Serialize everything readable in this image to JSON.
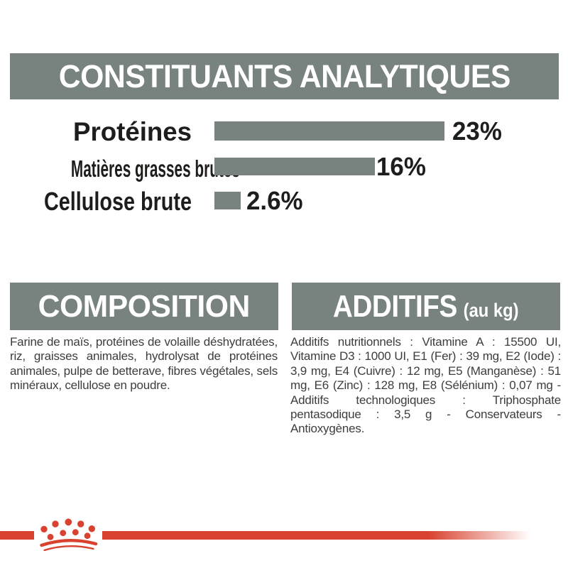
{
  "page": {
    "analytical_header": "CONSTITUANTS ANALYTIQUES",
    "composition": {
      "header": "COMPOSITION",
      "body": "Farine de maïs, protéines de volaille déshydratées, riz, graisses animales, hydrolysat de protéines animales, pulpe de betterave, fibres végétales, sels minéraux, cellulose en poudre."
    },
    "additifs": {
      "header": "ADDITIFS",
      "header_suffix": "(au kg)",
      "body": "Additifs nutritionnels : Vitamine A : 15500 UI, Vitamine D3 : 1000 UI, E1 (Fer) : 39 mg, E2 (Iode) : 3,9 mg, E4 (Cuivre) : 12 mg, E5 (Manganèse) : 51 mg, E6 (Zinc) : 128 mg, E8 (Sélénium) : 0,07 mg - Additifs technologiques : Triphosphate pentasodique : 3,5 g - Conservateurs - Antioxygènes."
    },
    "brand_logo": "royal-canin-crown"
  },
  "colors": {
    "header_gray": "#78827f",
    "bar_gray": "#78827f",
    "brand_red": "#d8422f",
    "label_dark": "#1d1d1b",
    "body_text": "#3d3d3c"
  },
  "chart_data": {
    "type": "bar",
    "orientation": "horizontal",
    "title": "CONSTITUANTS ANALYTIQUES",
    "categories": [
      "Protéines",
      "Matières grasses brutes",
      "Cellulose brute"
    ],
    "values": [
      23,
      16,
      2.6
    ],
    "value_labels": [
      "23%",
      "16%",
      "2.6%"
    ],
    "unit": "%",
    "xlabel": "",
    "ylabel": "",
    "xlim": [
      0,
      23
    ],
    "grid": false,
    "legend": false,
    "bar_color": "#78827f"
  }
}
